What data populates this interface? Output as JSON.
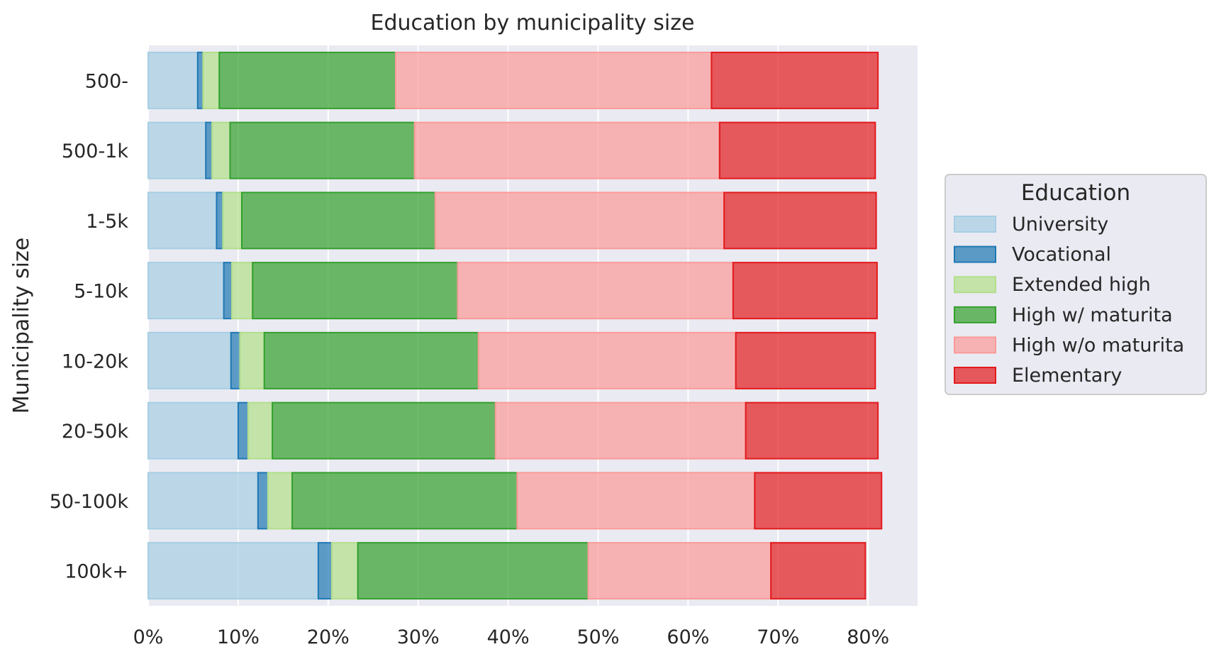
{
  "chart_data": {
    "type": "bar",
    "orientation": "horizontal",
    "stacked": true,
    "title": "Education by municipality size",
    "xlabel": "",
    "ylabel": "Municipality size",
    "xlim": [
      0,
      85.5
    ],
    "x_ticks": [
      0,
      10,
      20,
      30,
      40,
      50,
      60,
      70,
      80
    ],
    "x_tick_format": "percent",
    "grid": true,
    "legend": {
      "title": "Education",
      "placement": "right"
    },
    "categories": [
      "500-",
      "500-1k",
      "1-5k",
      "5-10k",
      "10-20k",
      "20-50k",
      "50-100k",
      "100k+"
    ],
    "series": [
      {
        "name": "University",
        "color": "#a6cee3",
        "values": [
          5.5,
          6.4,
          7.6,
          8.4,
          9.2,
          10.0,
          12.2,
          18.9
        ]
      },
      {
        "name": "Vocational",
        "color": "#1f78b4",
        "values": [
          0.6,
          0.7,
          0.7,
          0.9,
          1.0,
          1.1,
          1.1,
          1.5
        ]
      },
      {
        "name": "Extended high",
        "color": "#b2df8a",
        "values": [
          1.8,
          2.0,
          2.1,
          2.3,
          2.7,
          2.7,
          2.7,
          2.9
        ]
      },
      {
        "name": "High w/ maturita",
        "color": "#33a02c",
        "values": [
          19.6,
          20.5,
          21.5,
          22.8,
          23.8,
          24.8,
          25.0,
          25.6
        ]
      },
      {
        "name": "High w/o maturita",
        "color": "#fb9a99",
        "values": [
          35.1,
          33.9,
          32.1,
          30.6,
          28.6,
          27.8,
          26.4,
          20.3
        ]
      },
      {
        "name": "Elementary",
        "color": "#e31a1c",
        "values": [
          18.5,
          17.3,
          16.9,
          16.0,
          15.5,
          14.7,
          14.1,
          10.5
        ]
      }
    ]
  }
}
